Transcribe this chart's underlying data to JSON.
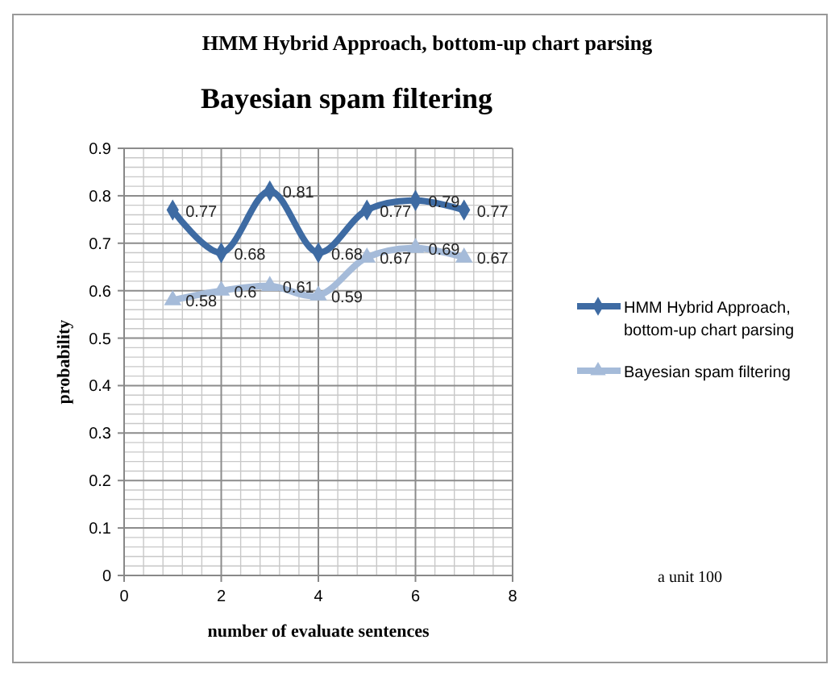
{
  "chart_data": {
    "type": "line",
    "title": "HMM Hybrid Approach,  bottom-up chart parsing",
    "subtitle": "Bayesian spam filtering",
    "xlabel": "number of evaluate sentences",
    "ylabel": "probability",
    "annotations": [
      "a unit 100"
    ],
    "x": [
      1,
      2,
      3,
      4,
      5,
      6,
      7
    ],
    "series": [
      {
        "name": "HMM Hybrid Approach, bottom-up chart parsing",
        "color": "#3e6ba3",
        "marker": "diamond",
        "values": [
          0.77,
          0.68,
          0.81,
          0.68,
          0.77,
          0.79,
          0.77
        ]
      },
      {
        "name": "Bayesian spam filtering",
        "color": "#a5bbd9",
        "marker": "triangle",
        "values": [
          0.58,
          0.6,
          0.61,
          0.59,
          0.67,
          0.69,
          0.67
        ]
      }
    ],
    "xlim": [
      0,
      8
    ],
    "xticks": [
      0,
      2,
      4,
      6,
      8
    ],
    "ylim": [
      0,
      0.9
    ],
    "yticks": [
      0,
      0.1,
      0.2,
      0.3,
      0.4,
      0.5,
      0.6,
      0.7,
      0.8,
      0.9
    ],
    "grid": true,
    "legend": "right",
    "data_labels": true
  }
}
